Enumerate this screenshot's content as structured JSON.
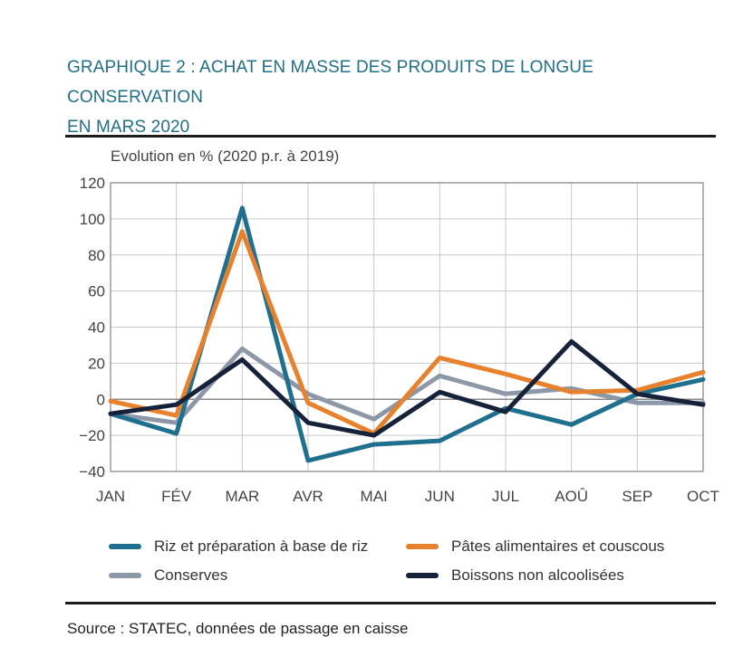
{
  "header": {
    "title_line1": "GRAPHIQUE 2 : ACHAT EN MASSE DES PRODUITS DE LONGUE CONSERVATION",
    "title_line2": "EN MARS 2020"
  },
  "source": "Source : STATEC, données de passage en caisse",
  "chart_data": {
    "type": "line",
    "ylabel": "Evolution en % (2020 p.r. à 2019)",
    "xlabel": "",
    "ylim": [
      -40,
      120
    ],
    "yticks": [
      120,
      100,
      80,
      60,
      40,
      20,
      0,
      -20,
      -40
    ],
    "ytick_labels": [
      "120",
      "100",
      "80",
      "60",
      "40",
      "20",
      "0",
      "−20",
      "−40"
    ],
    "grid": true,
    "legend_position": "bottom",
    "categories": [
      "JAN",
      "FÉV",
      "MAR",
      "AVR",
      "MAI",
      "JUN",
      "JUL",
      "AOÛ",
      "SEP",
      "OCT"
    ],
    "series": [
      {
        "name": "Riz et préparation à base de riz",
        "color": "#1f6f8f",
        "values": [
          -8,
          -19,
          106,
          -34,
          -25,
          -23,
          -5,
          -14,
          3,
          11
        ]
      },
      {
        "name": "Pâtes alimentaires et couscous",
        "color": "#e8812e",
        "values": [
          -1,
          -9,
          93,
          -2,
          -19,
          23,
          14,
          4,
          5,
          15
        ]
      },
      {
        "name": "Conserves",
        "color": "#8c98a7",
        "values": [
          -8,
          -13,
          28,
          3,
          -11,
          13,
          3,
          6,
          -2,
          -2
        ]
      },
      {
        "name": "Boissons non alcoolisées",
        "color": "#16213a",
        "values": [
          -8,
          -3,
          22,
          -13,
          -20,
          4,
          -7,
          32,
          3,
          -3
        ]
      }
    ]
  }
}
